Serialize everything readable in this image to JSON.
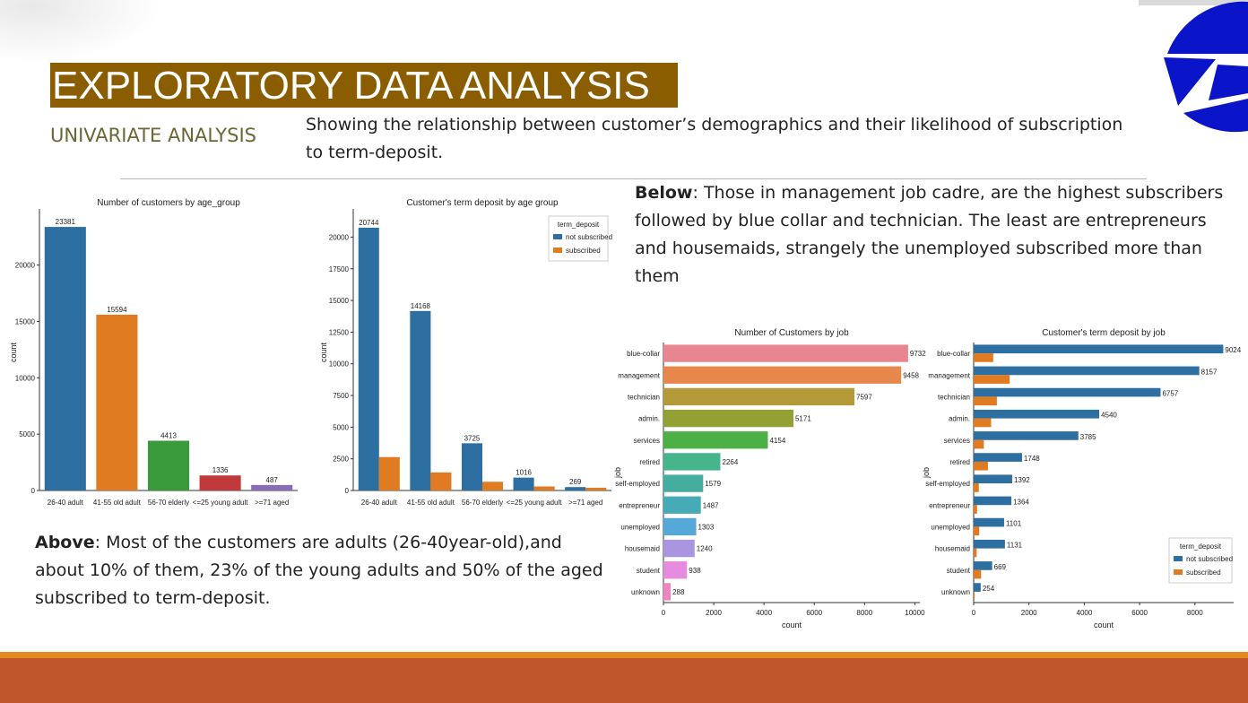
{
  "slide": {
    "title": "EXPLORATORY DATA  ANALYSIS",
    "subtitle": "UNIVARIATE ANALYSIS",
    "description": "Showing the relationship between customer’s demographics and their likelihood of subscription to term-deposit.",
    "below_note": {
      "lead": "Below",
      "text": ": Those in management job cadre, are the highest subscribers followed by blue collar and technician. The least are entrepreneurs and housemaids, strangely the unemployed subscribed more than them"
    },
    "above_note": {
      "lead": "Above",
      "text": ": Most of the customers are adults (26-40year-old),and about 10% of them, 23% of the young adults and 50% of the aged subscribed to term-deposit."
    },
    "colors": {
      "title_bg": "#8a5e00",
      "subtitle": "#6b6633",
      "footer": "#c0562b",
      "footer_line": "#e58a1f",
      "logo": "#0a14c8"
    }
  },
  "chart_data": [
    {
      "id": "age-count",
      "type": "bar",
      "orientation": "vertical",
      "title": "Number of customers by age_group",
      "xlabel": "age_group",
      "ylabel": "count",
      "categories": [
        "26-40 adult",
        "41-55 old adult",
        "56-70 elderly",
        "<=25 young adult",
        ">=71 aged"
      ],
      "values": [
        23381,
        15594,
        4413,
        1336,
        487
      ],
      "colors": [
        "#2c6fa0",
        "#e07b22",
        "#399a3c",
        "#c13a3b",
        "#8a6bb8"
      ],
      "ylim": [
        0,
        24500
      ],
      "yticks": [
        0,
        5000,
        10000,
        15000,
        20000
      ]
    },
    {
      "id": "age-deposit",
      "type": "bar",
      "orientation": "vertical",
      "title": "Customer's term deposit by age group",
      "xlabel": "age_group",
      "ylabel": "count",
      "categories": [
        "26-40 adult",
        "41-55 old adult",
        "56-70 elderly",
        "<=25 young adult",
        ">=71 aged"
      ],
      "series": [
        {
          "name": "not subscribed",
          "color": "#2c6fa0",
          "values": [
            20744,
            14168,
            3725,
            1016,
            269
          ]
        },
        {
          "name": "subscribed",
          "color": "#e07b22",
          "values": [
            2637,
            1426,
            688,
            320,
            218
          ]
        }
      ],
      "data_labels": "first-series",
      "legend": {
        "title": "term_deposit",
        "position": "top-right"
      },
      "ylim": [
        0,
        21800
      ],
      "yticks": [
        0,
        2500,
        5000,
        7500,
        10000,
        12500,
        15000,
        17500,
        20000
      ]
    },
    {
      "id": "job-count",
      "type": "bar",
      "orientation": "horizontal",
      "title": "Number of Customers by job",
      "xlabel": "count",
      "ylabel": "job",
      "categories": [
        "blue-collar",
        "management",
        "technician",
        "admin.",
        "services",
        "retired",
        "self-employed",
        "entrepreneur",
        "unemployed",
        "housemaid",
        "student",
        "unknown"
      ],
      "values": [
        9732,
        9458,
        7597,
        5171,
        4154,
        2264,
        1579,
        1487,
        1303,
        1240,
        938,
        288
      ],
      "colors": [
        "#e8868f",
        "#e8874c",
        "#b59a3a",
        "#93a033",
        "#4db045",
        "#46b58c",
        "#44ad9f",
        "#47aab7",
        "#55a8d8",
        "#a996df",
        "#e58be0",
        "#ef86c0"
      ],
      "xlim": [
        0,
        10200
      ],
      "xticks": [
        0,
        2000,
        4000,
        6000,
        8000,
        10000
      ]
    },
    {
      "id": "job-deposit",
      "type": "bar",
      "orientation": "horizontal",
      "title": "Customer's term deposit by job",
      "xlabel": "count",
      "ylabel": "job",
      "categories": [
        "blue-collar",
        "management",
        "technician",
        "admin.",
        "services",
        "retired",
        "self-employed",
        "entrepreneur",
        "unemployed",
        "housemaid",
        "student",
        "unknown"
      ],
      "series": [
        {
          "name": "not subscribed",
          "color": "#2c6fa0",
          "values": [
            9024,
            8157,
            6757,
            4540,
            3785,
            1748,
            1392,
            1364,
            1101,
            1131,
            669,
            254
          ]
        },
        {
          "name": "subscribed",
          "color": "#e07b22",
          "values": [
            708,
            1301,
            840,
            631,
            369,
            516,
            187,
            123,
            202,
            109,
            269,
            34
          ]
        }
      ],
      "data_labels": "first-series",
      "legend": {
        "title": "term_deposit",
        "position": "bottom-right"
      },
      "xlim": [
        0,
        9400
      ],
      "xticks": [
        0,
        2000,
        4000,
        6000,
        8000
      ]
    }
  ]
}
